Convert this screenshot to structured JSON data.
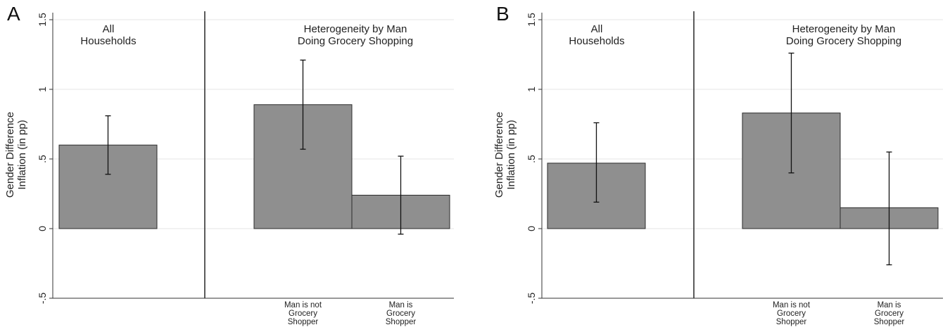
{
  "chart_data": [
    {
      "type": "bar",
      "panel_label": "A",
      "ylabel_lines": [
        "Gender Difference",
        "Inflation  (in pp)"
      ],
      "ylim": [
        -0.5,
        1.5
      ],
      "yticks": [
        {
          "value": -0.5,
          "label": "-.5"
        },
        {
          "value": 0,
          "label": "0"
        },
        {
          "value": 0.5,
          "label": ".5"
        },
        {
          "value": 1,
          "label": "1"
        },
        {
          "value": 1.5,
          "label": "1.5"
        }
      ],
      "grid": true,
      "section_titles": [
        [
          "All",
          "Households"
        ],
        [
          "Heterogeneity by Man",
          "Doing Grocery Shopping"
        ]
      ],
      "bars": [
        {
          "category_lines": [],
          "value": 0.6,
          "ci_low": 0.39,
          "ci_high": 0.81
        },
        {
          "category_lines": [
            "Man is not",
            "Grocery",
            "Shopper"
          ],
          "value": 0.89,
          "ci_low": 0.57,
          "ci_high": 1.21
        },
        {
          "category_lines": [
            "Man is",
            "Grocery",
            "Shopper"
          ],
          "value": 0.24,
          "ci_low": -0.04,
          "ci_high": 0.52
        }
      ],
      "colors": {
        "bar": "#8f8f8f",
        "stroke": "#2b2b2b",
        "grid": "#e6e6e6"
      }
    },
    {
      "type": "bar",
      "panel_label": "B",
      "ylabel_lines": [
        "Gender Difference",
        "Inflation  (in pp)"
      ],
      "ylim": [
        -0.5,
        1.5
      ],
      "yticks": [
        {
          "value": -0.5,
          "label": "-.5"
        },
        {
          "value": 0,
          "label": "0"
        },
        {
          "value": 0.5,
          "label": ".5"
        },
        {
          "value": 1,
          "label": "1"
        },
        {
          "value": 1.5,
          "label": "1.5"
        }
      ],
      "grid": true,
      "section_titles": [
        [
          "All",
          "Households"
        ],
        [
          "Heterogeneity by Man",
          "Doing Grocery Shopping"
        ]
      ],
      "bars": [
        {
          "category_lines": [],
          "value": 0.47,
          "ci_low": 0.19,
          "ci_high": 0.76
        },
        {
          "category_lines": [
            "Man is not",
            "Grocery",
            "Shopper"
          ],
          "value": 0.83,
          "ci_low": 0.4,
          "ci_high": 1.26
        },
        {
          "category_lines": [
            "Man is",
            "Grocery",
            "Shopper"
          ],
          "value": 0.15,
          "ci_low": -0.26,
          "ci_high": 0.55
        }
      ],
      "colors": {
        "bar": "#8f8f8f",
        "stroke": "#2b2b2b",
        "grid": "#e6e6e6"
      }
    }
  ]
}
